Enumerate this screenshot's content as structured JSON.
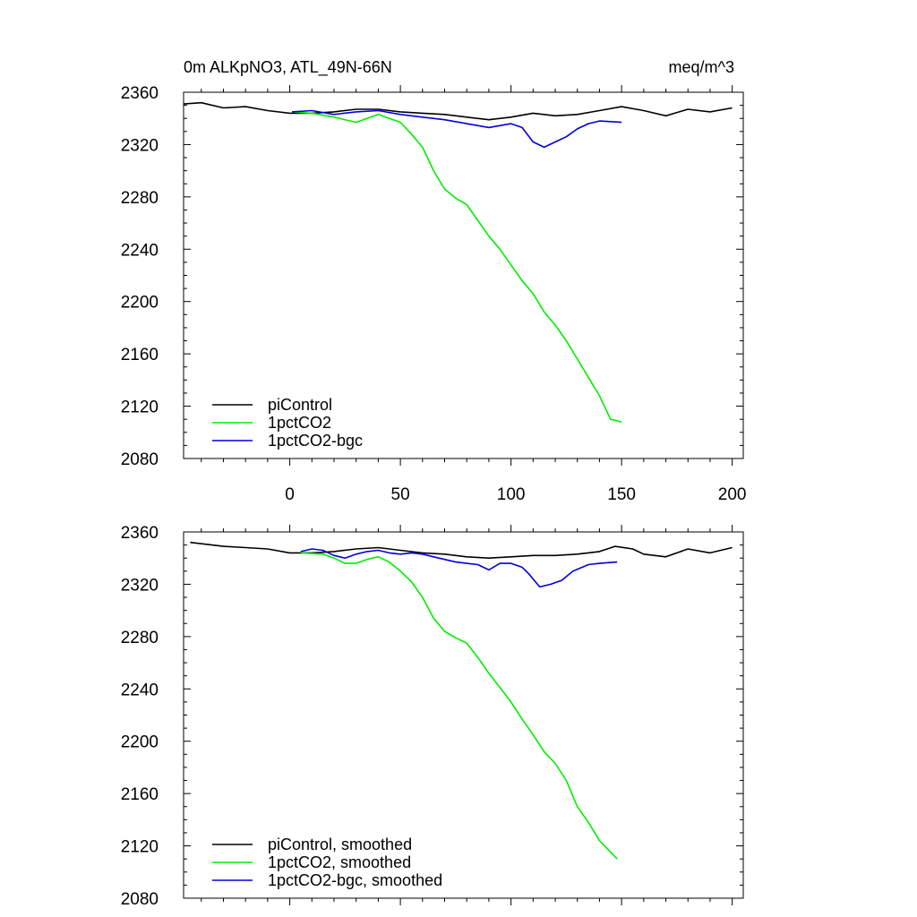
{
  "chart_data": [
    {
      "type": "line",
      "title": "0m ALKpNO3, ATL_49N-66N",
      "units": "meq/m^3",
      "xlabel": "",
      "ylabel": "",
      "xlim": [
        -48,
        205
      ],
      "ylim": [
        2080,
        2360
      ],
      "xticks": [
        0,
        50,
        100,
        150,
        200
      ],
      "yticks": [
        2080,
        2120,
        2160,
        2200,
        2240,
        2280,
        2320,
        2360
      ],
      "show_x_tick_labels": true,
      "grid": false,
      "legend_position": "bottom-left",
      "series": [
        {
          "name": "piControl",
          "color": "#000000",
          "x": [
            -48,
            -40,
            -30,
            -20,
            -10,
            0,
            10,
            20,
            30,
            40,
            50,
            60,
            70,
            80,
            90,
            100,
            110,
            120,
            130,
            140,
            150,
            160,
            170,
            180,
            190,
            200
          ],
          "y": [
            2351,
            2352,
            2348,
            2349,
            2346,
            2344,
            2344,
            2345,
            2347,
            2347,
            2345,
            2344,
            2343,
            2341,
            2339,
            2341,
            2344,
            2342,
            2343,
            2346,
            2349,
            2346,
            2342,
            2347,
            2345,
            2348
          ]
        },
        {
          "name": "1pctCO2",
          "color": "#00ee00",
          "x": [
            1,
            10,
            20,
            30,
            40,
            50,
            55,
            60,
            65,
            70,
            75,
            80,
            85,
            90,
            95,
            100,
            105,
            110,
            115,
            120,
            125,
            130,
            135,
            140,
            145,
            150
          ],
          "y": [
            2345,
            2344,
            2341,
            2337,
            2343,
            2337,
            2328,
            2318,
            2300,
            2286,
            2279,
            2274,
            2262,
            2250,
            2240,
            2228,
            2216,
            2206,
            2192,
            2182,
            2170,
            2156,
            2142,
            2128,
            2110,
            2108
          ]
        },
        {
          "name": "1pctCO2-bgc",
          "color": "#0000dd",
          "x": [
            1,
            10,
            20,
            30,
            40,
            50,
            60,
            70,
            80,
            90,
            100,
            105,
            110,
            115,
            120,
            125,
            130,
            135,
            140,
            150
          ],
          "y": [
            2345,
            2346,
            2343,
            2345,
            2346,
            2343,
            2341,
            2339,
            2336,
            2333,
            2336,
            2333,
            2322,
            2318,
            2322,
            2326,
            2332,
            2336,
            2338,
            2337
          ]
        }
      ]
    },
    {
      "type": "line",
      "title": "",
      "units": "",
      "xlabel": "",
      "ylabel": "",
      "xlim": [
        -48,
        205
      ],
      "ylim": [
        2080,
        2360
      ],
      "xticks": [
        0,
        50,
        100,
        150,
        200
      ],
      "yticks": [
        2080,
        2120,
        2160,
        2200,
        2240,
        2280,
        2320,
        2360
      ],
      "show_x_tick_labels": false,
      "grid": false,
      "legend_position": "bottom-left",
      "series": [
        {
          "name": "piControl, smoothed",
          "color": "#000000",
          "x": [
            -45,
            -30,
            -20,
            -10,
            0,
            10,
            20,
            30,
            40,
            50,
            60,
            70,
            80,
            90,
            100,
            110,
            120,
            130,
            140,
            147,
            155,
            160,
            170,
            180,
            190,
            200
          ],
          "y": [
            2352,
            2349,
            2348,
            2347,
            2344,
            2344,
            2345,
            2347,
            2348,
            2346,
            2344,
            2343,
            2341,
            2340,
            2341,
            2342,
            2342,
            2343,
            2345,
            2349,
            2347,
            2343,
            2341,
            2347,
            2344,
            2348
          ]
        },
        {
          "name": "1pctCO2, smoothed",
          "color": "#00ee00",
          "x": [
            5,
            15,
            20,
            25,
            30,
            35,
            40,
            45,
            50,
            55,
            60,
            65,
            70,
            75,
            80,
            85,
            90,
            95,
            100,
            105,
            110,
            115,
            120,
            125,
            130,
            135,
            140,
            148
          ],
          "y": [
            2344,
            2343,
            2340,
            2336,
            2336,
            2339,
            2341,
            2337,
            2330,
            2322,
            2310,
            2294,
            2284,
            2279,
            2275,
            2264,
            2252,
            2241,
            2230,
            2217,
            2205,
            2192,
            2183,
            2170,
            2150,
            2138,
            2124,
            2110
          ]
        },
        {
          "name": "1pctCO2-bgc, smoothed",
          "color": "#0000dd",
          "x": [
            5,
            10,
            15,
            20,
            25,
            30,
            35,
            40,
            45,
            50,
            55,
            60,
            65,
            70,
            75,
            80,
            85,
            90,
            95,
            100,
            105,
            108,
            113,
            118,
            123,
            128,
            135,
            140,
            148
          ],
          "y": [
            2345,
            2347,
            2346,
            2342,
            2340,
            2343,
            2345,
            2346,
            2344,
            2343,
            2344,
            2343,
            2341,
            2339,
            2337,
            2336,
            2335,
            2331,
            2336,
            2336,
            2333,
            2328,
            2318,
            2320,
            2323,
            2330,
            2335,
            2336,
            2337
          ]
        }
      ]
    }
  ]
}
